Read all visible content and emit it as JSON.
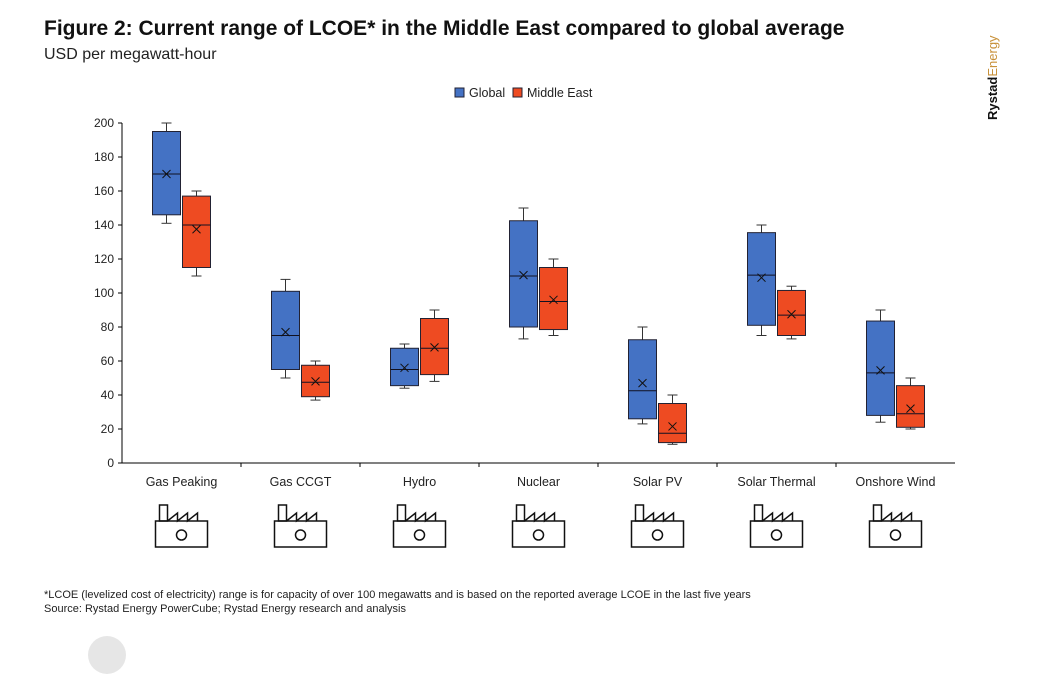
{
  "header": {
    "title": "Figure 2: Current range of LCOE* in the Middle East compared to global average",
    "subtitle": "USD per megawatt-hour"
  },
  "logo": {
    "part1": "Rystad",
    "part2": "Energy"
  },
  "footer": {
    "note": "*LCOE (levelized cost of electricity) range is for capacity of over 100 megawatts and is based on the reported average LCOE in the last five years",
    "source": "Source: Rystad Energy PowerCube; Rystad Energy research and analysis"
  },
  "chart_data": {
    "type": "boxplot",
    "ylim": [
      0,
      200
    ],
    "yticks": [
      0,
      20,
      40,
      60,
      80,
      100,
      120,
      140,
      160,
      180,
      200
    ],
    "legend_position": "top-center",
    "grid": false,
    "categories": [
      "Gas Peaking",
      "Gas CCGT",
      "Hydro",
      "Nuclear",
      "Solar PV",
      "Solar Thermal",
      "Onshore Wind"
    ],
    "icons": [
      "gas-peaking-plant-icon",
      "gas-ccgt-plant-icon",
      "hydro-dam-icon",
      "nuclear-plant-icon",
      "solar-pv-panel-icon",
      "solar-thermal-mirror-icon",
      "wind-turbine-icon"
    ],
    "series": [
      {
        "name": "Global",
        "color": "#4472c4",
        "boxes": [
          {
            "min": 141,
            "q1": 146,
            "median": 170,
            "mean": 170,
            "q3": 195,
            "max": 200
          },
          {
            "min": 50,
            "q1": 55,
            "median": 75,
            "mean": 77,
            "q3": 101,
            "max": 108
          },
          {
            "min": 44,
            "q1": 45.5,
            "median": 55,
            "mean": 56,
            "q3": 67.5,
            "max": 70
          },
          {
            "min": 73,
            "q1": 80,
            "median": 110,
            "mean": 110.5,
            "q3": 142.5,
            "max": 150
          },
          {
            "min": 23,
            "q1": 26,
            "median": 42.5,
            "mean": 47,
            "q3": 72.5,
            "max": 80
          },
          {
            "min": 75,
            "q1": 81,
            "median": 110.5,
            "mean": 109,
            "q3": 135.5,
            "max": 140
          },
          {
            "min": 24,
            "q1": 28,
            "median": 53,
            "mean": 54.5,
            "q3": 83.5,
            "max": 90
          }
        ]
      },
      {
        "name": "Middle East",
        "color": "#ee4b22",
        "boxes": [
          {
            "min": 110,
            "q1": 115,
            "median": 140,
            "mean": 137.5,
            "q3": 157,
            "max": 160
          },
          {
            "min": 37,
            "q1": 39,
            "median": 47.5,
            "mean": 48,
            "q3": 57.5,
            "max": 60
          },
          {
            "min": 48,
            "q1": 52,
            "median": 67.5,
            "mean": 68,
            "q3": 85,
            "max": 90
          },
          {
            "min": 75,
            "q1": 78.5,
            "median": 95,
            "mean": 96,
            "q3": 115,
            "max": 120
          },
          {
            "min": 11,
            "q1": 12,
            "median": 17.5,
            "mean": 21.5,
            "q3": 35,
            "max": 40
          },
          {
            "min": 73,
            "q1": 75,
            "median": 87,
            "mean": 87.5,
            "q3": 101.5,
            "max": 104
          },
          {
            "min": 20,
            "q1": 21,
            "median": 29,
            "mean": 32,
            "q3": 45.5,
            "max": 50
          }
        ]
      }
    ]
  }
}
